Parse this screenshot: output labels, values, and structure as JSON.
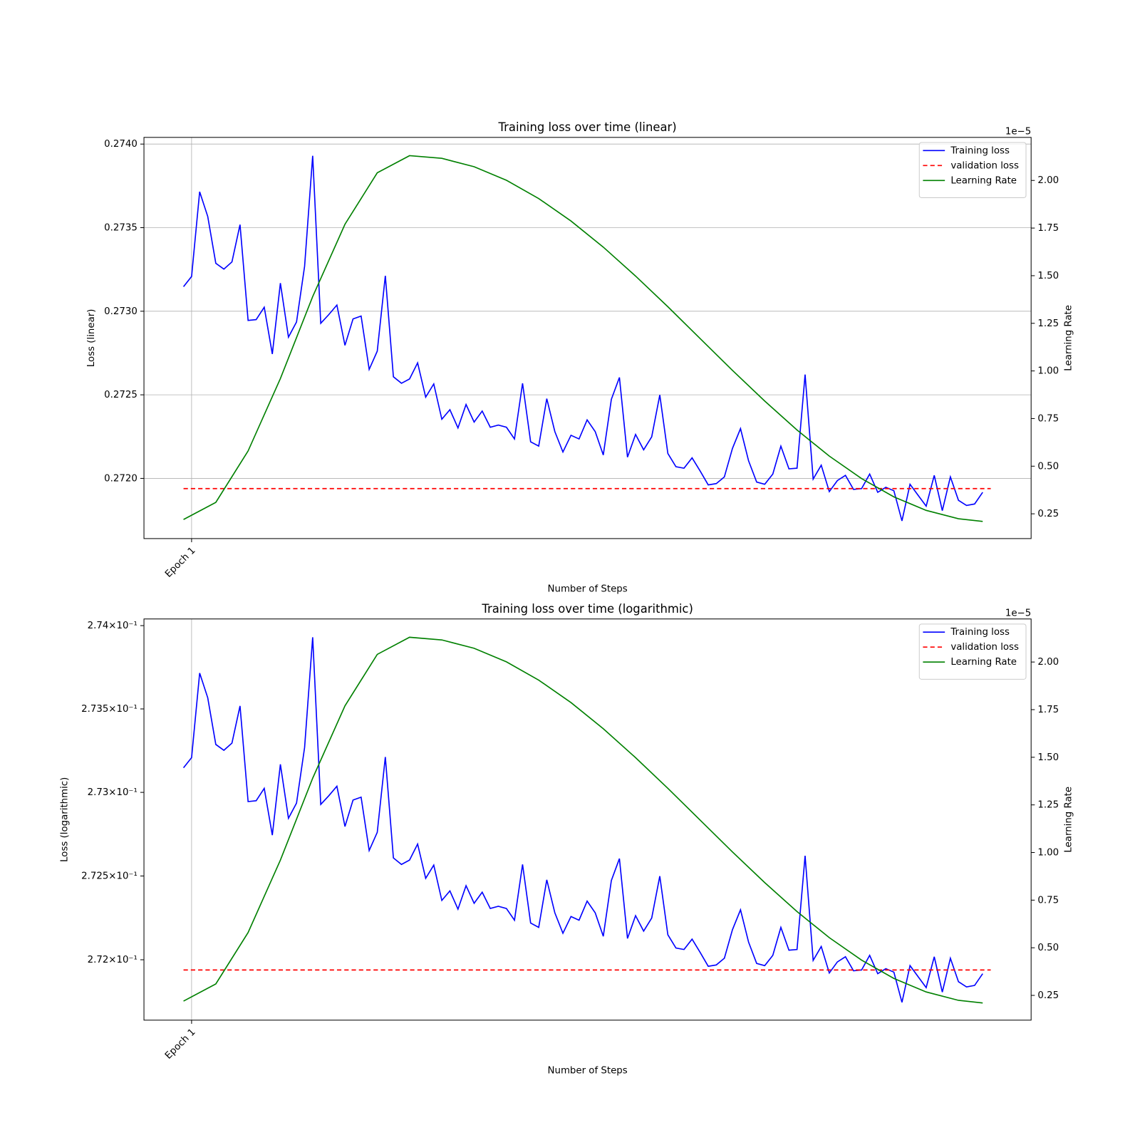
{
  "chart_data": [
    {
      "type": "line",
      "title": "Training loss over time (linear)",
      "xlabel": "Number of Steps",
      "ylabel": "Loss (linear)",
      "y2label": "Learning Rate",
      "y2_offset_text": "1e−5",
      "yscale": "linear",
      "grid": [
        "x",
        "y"
      ],
      "legend": "upper right",
      "xlim": [
        -4.9,
        105
      ],
      "xticks": [
        {
          "value": 1,
          "label": "Epoch 1"
        }
      ],
      "ylim": [
        0.27164,
        0.27404
      ],
      "yticks": [
        {
          "value": 0.272,
          "label": "0.2720"
        },
        0.2725,
        {
          "value": 0.273,
          "label": "0.2730"
        },
        0.2735,
        {
          "value": 0.274,
          "label": "0.2740"
        }
      ],
      "y2lim": [
        0.12,
        2.226
      ],
      "y2ticks": [
        0.25,
        {
          "value": 0.5,
          "label": "0.50"
        },
        0.75,
        {
          "value": 1,
          "label": "1.00"
        },
        1.25,
        {
          "value": 1.5,
          "label": "1.50"
        },
        1.75,
        {
          "value": 2,
          "label": "2.00"
        }
      ],
      "series": [
        {
          "name": "Training loss",
          "color": "#0000ff",
          "x": [
            0,
            1,
            2,
            3,
            4,
            5,
            6,
            7,
            8,
            9,
            10,
            11,
            12,
            13,
            14,
            15,
            16,
            17,
            18,
            19,
            20,
            21,
            22,
            23,
            24,
            25,
            26,
            27,
            28,
            29,
            30,
            31,
            32,
            33,
            34,
            35,
            36,
            37,
            38,
            39,
            40,
            41,
            42,
            43,
            44,
            45,
            46,
            47,
            48,
            49,
            50,
            51,
            52,
            53,
            54,
            55,
            56,
            57,
            58,
            59,
            60,
            61,
            62,
            63,
            64,
            65,
            66,
            67,
            68,
            69,
            70,
            71,
            72,
            73,
            74,
            75,
            76,
            77,
            78,
            79,
            80,
            81,
            82,
            83,
            84,
            85,
            86,
            87,
            88,
            89,
            90,
            91,
            92,
            93,
            94,
            95,
            96,
            97,
            98,
            99
          ],
          "values": [
            0.273147,
            0.273208,
            0.273715,
            0.273567,
            0.273287,
            0.273252,
            0.273295,
            0.273518,
            0.272945,
            0.27295,
            0.273024,
            0.272744,
            0.273168,
            0.272845,
            0.272936,
            0.273269,
            0.27393,
            0.272928,
            0.27298,
            0.273037,
            0.272796,
            0.272954,
            0.272971,
            0.272652,
            0.272761,
            0.273212,
            0.272608,
            0.272569,
            0.272595,
            0.272691,
            0.272486,
            0.272565,
            0.272354,
            0.272411,
            0.272302,
            0.272442,
            0.272337,
            0.272403,
            0.272306,
            0.272319,
            0.272306,
            0.272236,
            0.272569,
            0.272219,
            0.272193,
            0.272477,
            0.27228,
            0.272158,
            0.272258,
            0.272236,
            0.27235,
            0.27228,
            0.27214,
            0.272473,
            0.272604,
            0.272127,
            0.272263,
            0.272171,
            0.272249,
            0.272499,
            0.272149,
            0.27207,
            0.272061,
            0.272123,
            0.272044,
            0.271961,
            0.271969,
            0.272009,
            0.272179,
            0.272298,
            0.272105,
            0.271978,
            0.271965,
            0.272026,
            0.272193,
            0.272057,
            0.272061,
            0.272621,
            0.271996,
            0.272079,
            0.271921,
            0.271987,
            0.272018,
            0.271934,
            0.271939,
            0.272026,
            0.271917,
            0.271947,
            0.271926,
            0.271746,
            0.271965,
            0.271899,
            0.271834,
            0.272018,
            0.271807,
            0.272009,
            0.271869,
            0.271838,
            0.271847,
            0.271917
          ]
        },
        {
          "name": "validation loss",
          "color": "#ff0000",
          "linestyle": "dashed",
          "x": [
            0,
            100
          ],
          "values": [
            0.271939,
            0.271939
          ]
        },
        {
          "name": "Learning Rate",
          "color": "#008000",
          "axis": "y2",
          "x": [
            0,
            4,
            8,
            12,
            16,
            20,
            24,
            28,
            32,
            36,
            40,
            44,
            48,
            52,
            56,
            60,
            64,
            68,
            72,
            76,
            80,
            84,
            88,
            92,
            96,
            99
          ],
          "values": [
            0.22,
            0.31,
            0.58,
            0.96,
            1.39,
            1.77,
            2.04,
            2.13,
            2.116,
            2.072,
            2.001,
            1.905,
            1.787,
            1.65,
            1.498,
            1.337,
            1.17,
            1.003,
            0.842,
            0.69,
            0.553,
            0.435,
            0.339,
            0.268,
            0.224,
            0.21
          ]
        }
      ]
    },
    {
      "type": "line",
      "title": "Training loss over time (logarithmic)",
      "xlabel": "Number of Steps",
      "ylabel": "Loss (logarithmic)",
      "y2label": "Learning Rate",
      "y2_offset_text": "1e−5",
      "yscale": "log",
      "grid": [
        "x"
      ],
      "legend": "upper right",
      "xlim": [
        -4.9,
        105
      ],
      "xticks": [
        {
          "value": 1,
          "label": "Epoch 1"
        }
      ],
      "ylim": [
        0.27164,
        0.27404
      ],
      "yticks": [
        {
          "value": 0.272,
          "label": "2.72×10⁻¹"
        },
        {
          "value": 0.2725,
          "label": "2.725×10⁻¹"
        },
        {
          "value": 0.273,
          "label": "2.73×10⁻¹"
        },
        {
          "value": 0.2735,
          "label": "2.735×10⁻¹"
        },
        {
          "value": 0.274,
          "label": "2.74×10⁻¹"
        }
      ],
      "y2lim": [
        0.12,
        2.226
      ],
      "y2ticks": [
        0.25,
        {
          "value": 0.5,
          "label": "0.50"
        },
        0.75,
        {
          "value": 1,
          "label": "1.00"
        },
        1.25,
        {
          "value": 1.5,
          "label": "1.50"
        },
        1.75,
        {
          "value": 2,
          "label": "2.00"
        }
      ],
      "series": [
        {
          "name": "Training loss",
          "color": "#0000ff",
          "x": [
            0,
            1,
            2,
            3,
            4,
            5,
            6,
            7,
            8,
            9,
            10,
            11,
            12,
            13,
            14,
            15,
            16,
            17,
            18,
            19,
            20,
            21,
            22,
            23,
            24,
            25,
            26,
            27,
            28,
            29,
            30,
            31,
            32,
            33,
            34,
            35,
            36,
            37,
            38,
            39,
            40,
            41,
            42,
            43,
            44,
            45,
            46,
            47,
            48,
            49,
            50,
            51,
            52,
            53,
            54,
            55,
            56,
            57,
            58,
            59,
            60,
            61,
            62,
            63,
            64,
            65,
            66,
            67,
            68,
            69,
            70,
            71,
            72,
            73,
            74,
            75,
            76,
            77,
            78,
            79,
            80,
            81,
            82,
            83,
            84,
            85,
            86,
            87,
            88,
            89,
            90,
            91,
            92,
            93,
            94,
            95,
            96,
            97,
            98,
            99
          ],
          "values": [
            0.273147,
            0.273208,
            0.273715,
            0.273567,
            0.273287,
            0.273252,
            0.273295,
            0.273518,
            0.272945,
            0.27295,
            0.273024,
            0.272744,
            0.273168,
            0.272845,
            0.272936,
            0.273269,
            0.27393,
            0.272928,
            0.27298,
            0.273037,
            0.272796,
            0.272954,
            0.272971,
            0.272652,
            0.272761,
            0.273212,
            0.272608,
            0.272569,
            0.272595,
            0.272691,
            0.272486,
            0.272565,
            0.272354,
            0.272411,
            0.272302,
            0.272442,
            0.272337,
            0.272403,
            0.272306,
            0.272319,
            0.272306,
            0.272236,
            0.272569,
            0.272219,
            0.272193,
            0.272477,
            0.27228,
            0.272158,
            0.272258,
            0.272236,
            0.27235,
            0.27228,
            0.27214,
            0.272473,
            0.272604,
            0.272127,
            0.272263,
            0.272171,
            0.272249,
            0.272499,
            0.272149,
            0.27207,
            0.272061,
            0.272123,
            0.272044,
            0.271961,
            0.271969,
            0.272009,
            0.272179,
            0.272298,
            0.272105,
            0.271978,
            0.271965,
            0.272026,
            0.272193,
            0.272057,
            0.272061,
            0.272621,
            0.271996,
            0.272079,
            0.271921,
            0.271987,
            0.272018,
            0.271934,
            0.271939,
            0.272026,
            0.271917,
            0.271947,
            0.271926,
            0.271746,
            0.271965,
            0.271899,
            0.271834,
            0.272018,
            0.271807,
            0.272009,
            0.271869,
            0.271838,
            0.271847,
            0.271917
          ]
        },
        {
          "name": "validation loss",
          "color": "#ff0000",
          "linestyle": "dashed",
          "x": [
            0,
            100
          ],
          "values": [
            0.271939,
            0.271939
          ]
        },
        {
          "name": "Learning Rate",
          "color": "#008000",
          "axis": "y2",
          "x": [
            0,
            4,
            8,
            12,
            16,
            20,
            24,
            28,
            32,
            36,
            40,
            44,
            48,
            52,
            56,
            60,
            64,
            68,
            72,
            76,
            80,
            84,
            88,
            92,
            96,
            99
          ],
          "values": [
            0.22,
            0.31,
            0.58,
            0.96,
            1.39,
            1.77,
            2.04,
            2.13,
            2.116,
            2.072,
            2.001,
            1.905,
            1.787,
            1.65,
            1.498,
            1.337,
            1.17,
            1.003,
            0.842,
            0.69,
            0.553,
            0.435,
            0.339,
            0.268,
            0.224,
            0.21
          ]
        }
      ]
    }
  ]
}
